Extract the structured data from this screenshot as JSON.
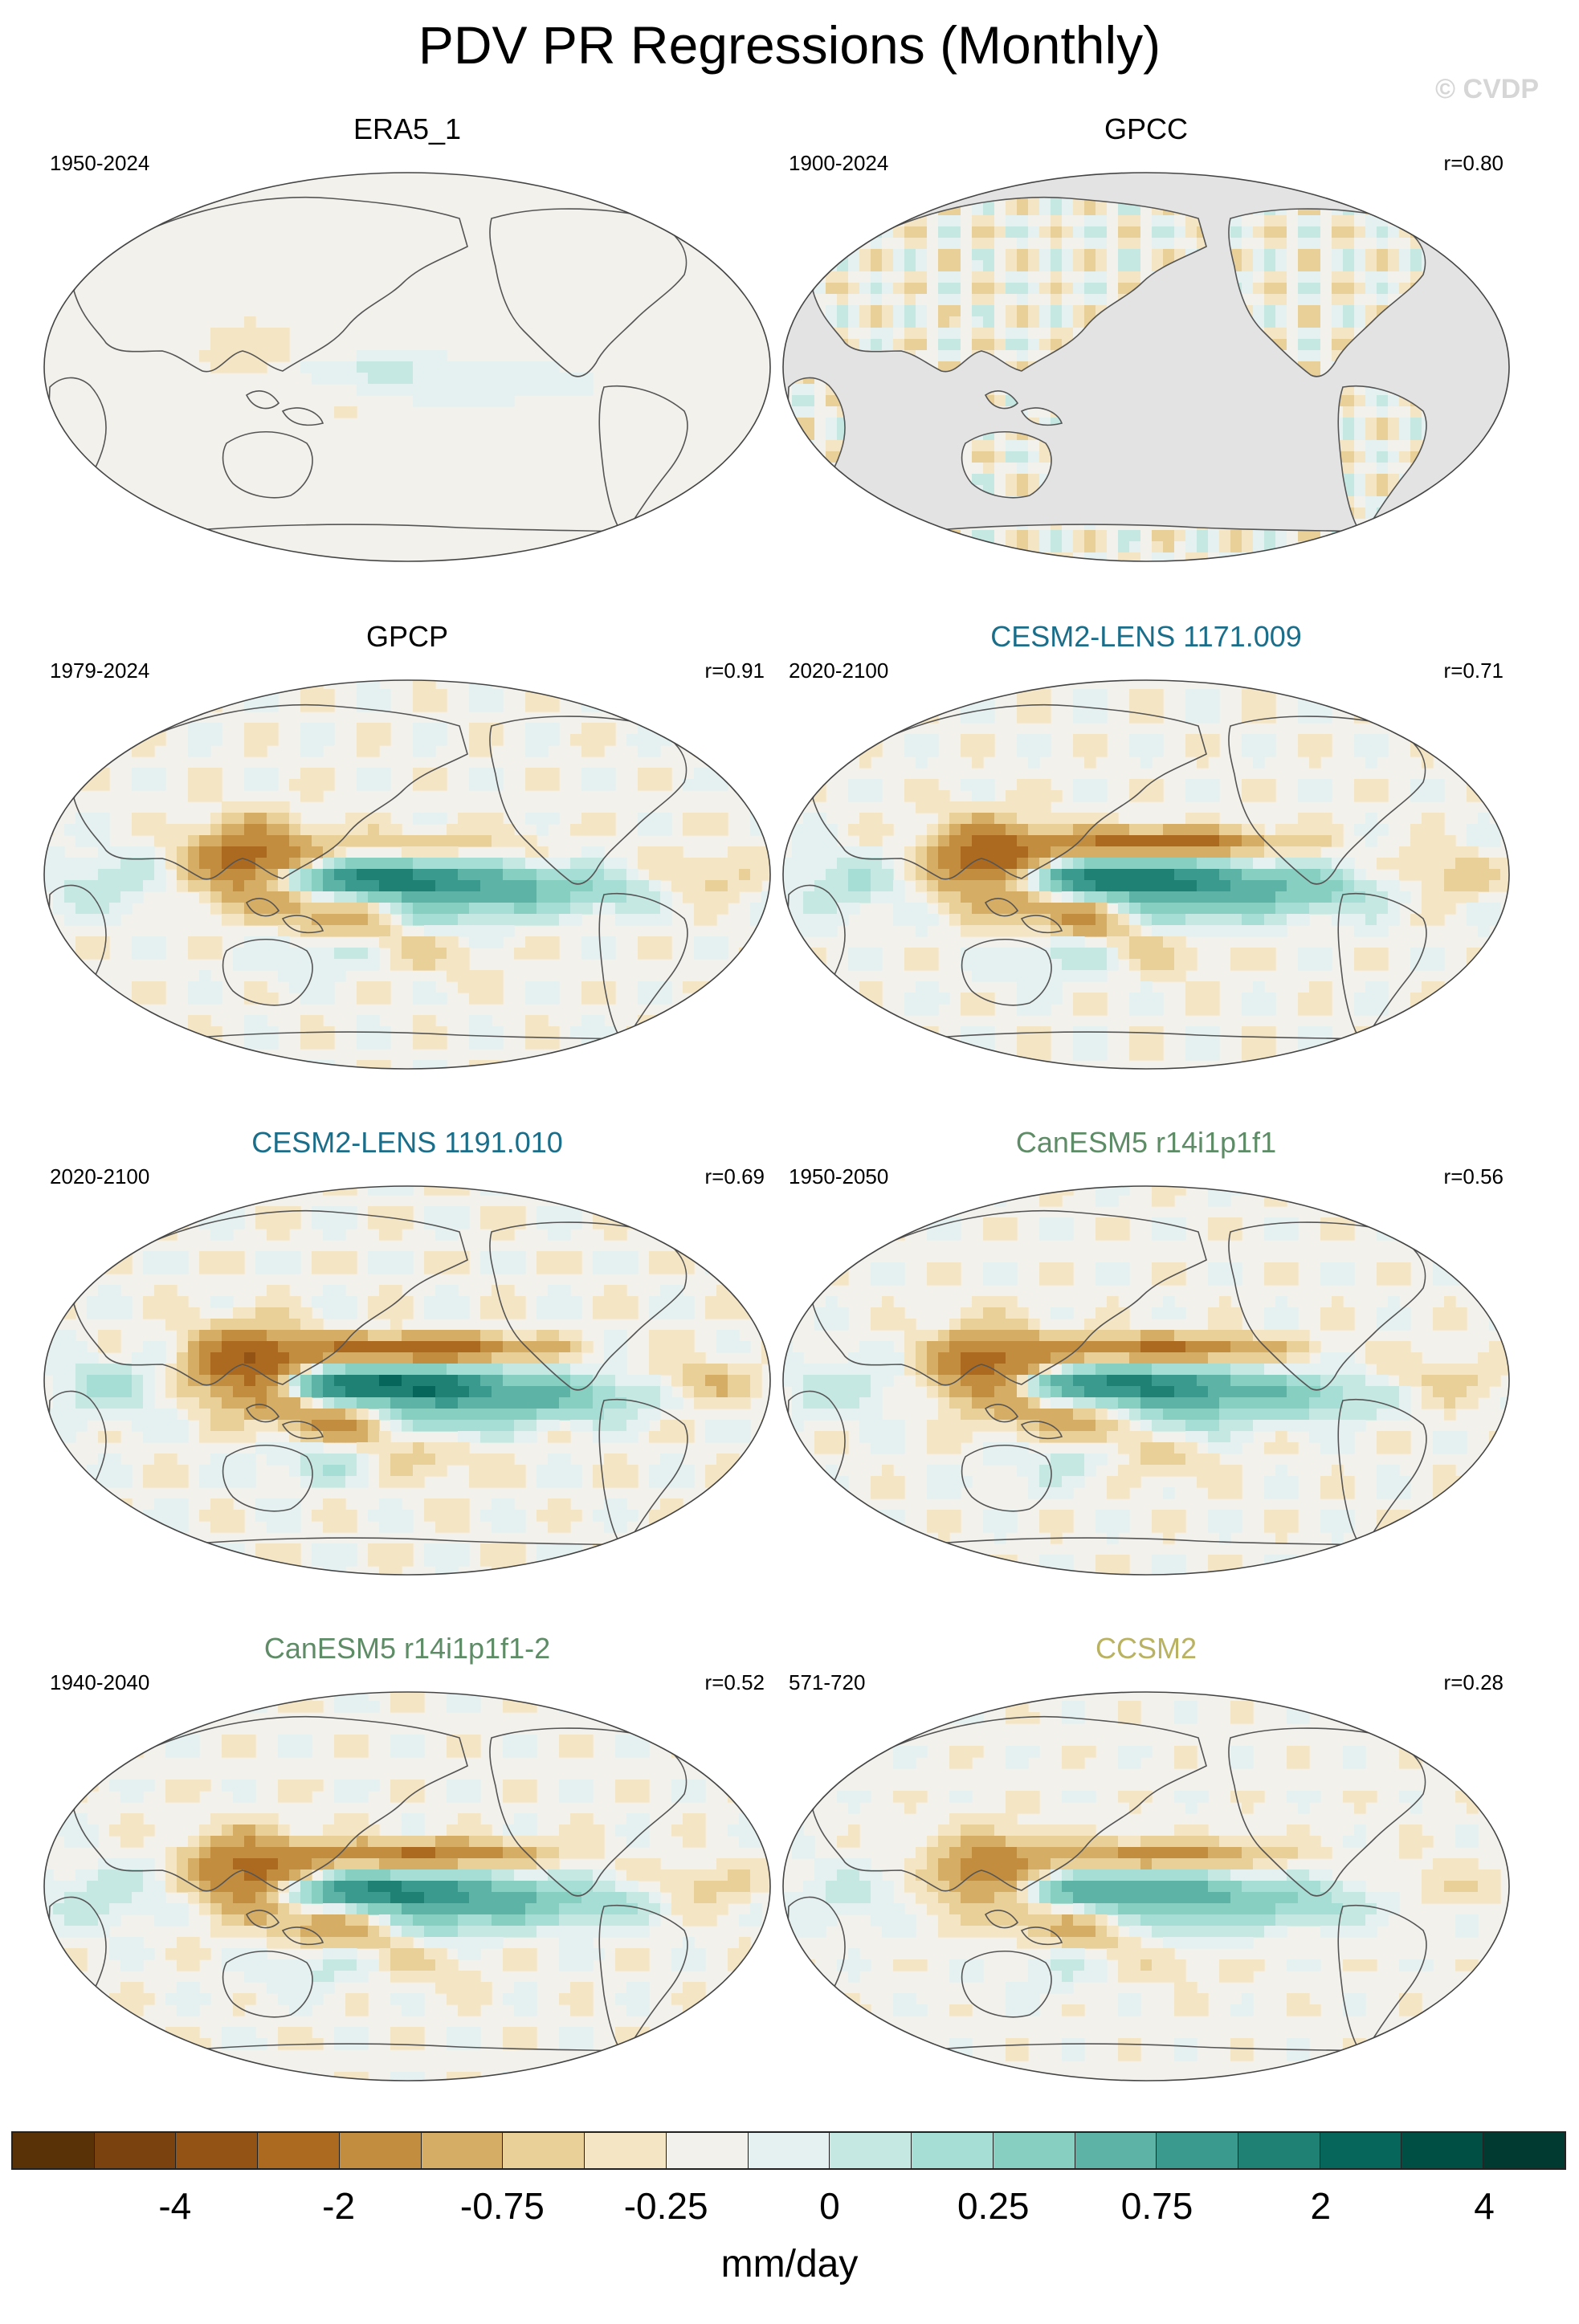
{
  "title": "PDV PR Regressions (Monthly)",
  "watermark": "© CVDP",
  "colors": {
    "land_mask": "#e3e3e3",
    "coastline": "#555555",
    "palette": [
      "#5a3208",
      "#7a420e",
      "#925314",
      "#ab6a20",
      "#c28d3f",
      "#d6ad64",
      "#e9cf98",
      "#f4e5c4",
      "#f3f1ec",
      "#e4f1f0",
      "#c5e8e3",
      "#a6ddd4",
      "#86cfc1",
      "#5db4a6",
      "#3a9a8d",
      "#1f8074",
      "#07665c",
      "#004f45",
      "#003a31"
    ]
  },
  "panels": [
    {
      "name": "ERA5_1",
      "period": "1950-2024",
      "correlation": "",
      "title_color": "#000000",
      "land_masked": false,
      "pattern_strength": 0.1
    },
    {
      "name": "GPCC",
      "period": "1900-2024",
      "correlation": "r=0.80",
      "title_color": "#000000",
      "land_masked": true,
      "pattern_strength": 0.35
    },
    {
      "name": "GPCP",
      "period": "1979-2024",
      "correlation": "r=0.91",
      "title_color": "#000000",
      "land_masked": false,
      "pattern_strength": 1.0
    },
    {
      "name": "CESM2-LENS 1171.009",
      "period": "2020-2100",
      "correlation": "r=0.71",
      "title_color": "#1b6e8a",
      "land_masked": false,
      "pattern_strength": 1.1
    },
    {
      "name": "CESM2-LENS 1191.010",
      "period": "2020-2100",
      "correlation": "r=0.69",
      "title_color": "#1b6e8a",
      "land_masked": false,
      "pattern_strength": 1.2
    },
    {
      "name": "CanESM5 r14i1p1f1",
      "period": "1950-2050",
      "correlation": "r=0.56",
      "title_color": "#5e8c66",
      "land_masked": false,
      "pattern_strength": 0.95
    },
    {
      "name": "CanESM5 r14i1p1f1-2",
      "period": "1940-2040",
      "correlation": "r=0.52",
      "title_color": "#5e8c66",
      "land_masked": false,
      "pattern_strength": 0.95
    },
    {
      "name": "CCSM2",
      "period": "571-720",
      "correlation": "r=0.28",
      "title_color": "#b9b261",
      "land_masked": false,
      "pattern_strength": 0.7
    }
  ],
  "colorbar": {
    "tick_labels": [
      "-4",
      "-2",
      "-0.75",
      "-0.25",
      "0",
      "0.25",
      "0.75",
      "2",
      "4"
    ],
    "units": "mm/day"
  }
}
